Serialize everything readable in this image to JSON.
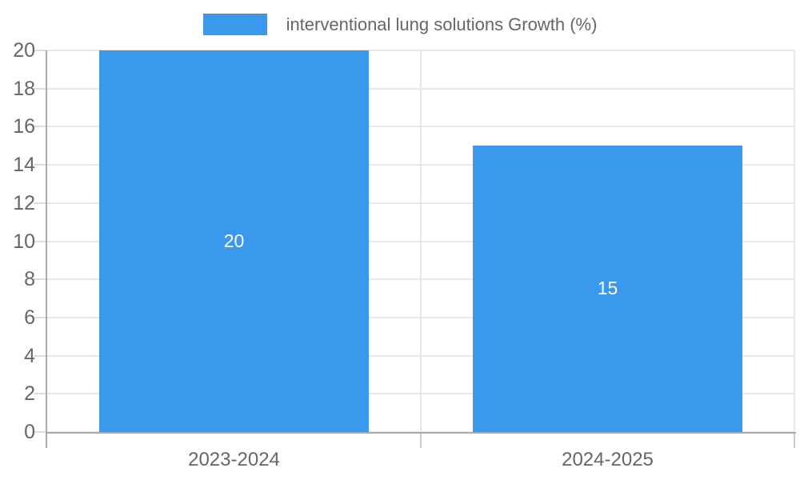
{
  "chart_data": {
    "type": "bar",
    "title": "",
    "legend": [
      "interventional lung solutions Growth (%)"
    ],
    "legend_position": "top",
    "categories": [
      "2023-2024",
      "2024-2025"
    ],
    "values": [
      20,
      15
    ],
    "data_labels": [
      "20",
      "15"
    ],
    "ylim": [
      0,
      20
    ],
    "ytick_step": 2,
    "yticks": [
      0,
      2,
      4,
      6,
      8,
      10,
      12,
      14,
      16,
      18,
      20
    ],
    "xlabel": "",
    "ylabel": "",
    "grid": true
  },
  "colors": {
    "bar": "#3a99ec",
    "grid": "#e8e8e8",
    "tick": "#dddddd",
    "bottom_tick": "#cccccc",
    "axis": "#aaaaaa",
    "text": "#666666",
    "data_label": "#ffffff",
    "background": "#ffffff"
  }
}
